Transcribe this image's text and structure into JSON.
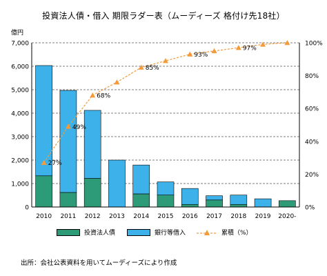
{
  "title": "投資法人債・借入 期限ラダー表（ムーディーズ 格付け先18社）",
  "source_note": "出所：会社公表資料を用いてムーディーズにより作成",
  "colors": {
    "bond": "#2e9b78",
    "bank": "#3db2ea",
    "cumulative": "#f39a3a",
    "axis": "#000000",
    "grid": "#000000"
  },
  "chart_data": {
    "type": "bar",
    "stacked": true,
    "categories": [
      "2010",
      "2011",
      "2012",
      "2013",
      "2014",
      "2015",
      "2016",
      "2017",
      "2018",
      "2019",
      "2020-"
    ],
    "series": [
      {
        "name": "投資法人債",
        "values": [
          1330,
          620,
          1220,
          0,
          560,
          510,
          110,
          300,
          110,
          0,
          270
        ]
      },
      {
        "name": "銀行等借入",
        "values": [
          4700,
          4350,
          2900,
          2000,
          1230,
          560,
          680,
          180,
          400,
          350,
          0
        ]
      }
    ],
    "line_series": {
      "name": "累積（%）",
      "axis": "right",
      "values": [
        27,
        49,
        68,
        76,
        85,
        89,
        93,
        95,
        97,
        99,
        100
      ],
      "labels": [
        "27%",
        "49%",
        "68%",
        "",
        "85%",
        "",
        "93%",
        "",
        "97%",
        "",
        ""
      ]
    },
    "left_axis": {
      "unit_label": "億円",
      "ylim": [
        0,
        7000
      ],
      "ticks": [
        "0",
        "1,000",
        "2,000",
        "3,000",
        "4,000",
        "5,000",
        "6,000",
        "7,000"
      ]
    },
    "right_axis": {
      "ylim": [
        0,
        100
      ],
      "ticks": [
        "0%",
        "20%",
        "40%",
        "60%",
        "80%",
        "100%"
      ]
    },
    "grid": "horizontal dashed",
    "legend_position": "bottom"
  }
}
